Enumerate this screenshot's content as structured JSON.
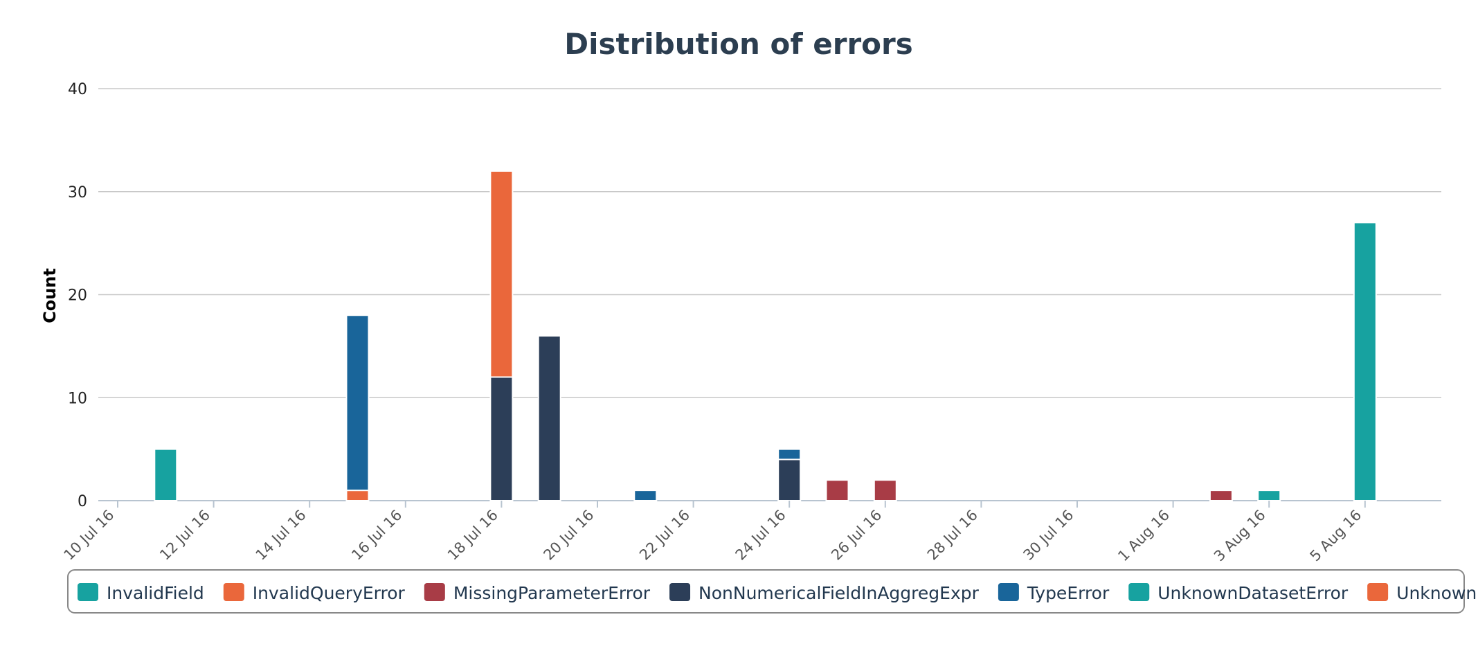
{
  "chart_data": {
    "type": "bar",
    "stacked": true,
    "title": "Distribution of errors",
    "ylabel": "Count",
    "xlabel": "",
    "ylim": [
      0,
      40
    ],
    "y_ticks": [
      "0",
      "10",
      "20",
      "30",
      "40"
    ],
    "x_axis": "date",
    "x_range": [
      "2016-07-10",
      "2016-08-07"
    ],
    "x_tick_dates": [
      "2016-07-10",
      "2016-07-12",
      "2016-07-14",
      "2016-07-16",
      "2016-07-18",
      "2016-07-20",
      "2016-07-22",
      "2016-07-24",
      "2016-07-26",
      "2016-07-28",
      "2016-07-30",
      "2016-08-01",
      "2016-08-03",
      "2016-08-05"
    ],
    "x_tick_labels": [
      "10 Jul 16",
      "12 Jul 16",
      "14 Jul 16",
      "16 Jul 16",
      "18 Jul 16",
      "20 Jul 16",
      "22 Jul 16",
      "24 Jul 16",
      "26 Jul 16",
      "28 Jul 16",
      "30 Jul 16",
      "1 Aug 16",
      "3 Aug 16",
      "5 Aug 16"
    ],
    "grid": true,
    "legend_position": "bottom",
    "series": [
      {
        "name": "InvalidField",
        "color": "#17a2a0",
        "points": [
          {
            "date": "2016-07-11",
            "value": 5
          }
        ]
      },
      {
        "name": "InvalidQueryError",
        "color": "#ea673b",
        "points": [
          {
            "date": "2016-07-15",
            "value": 1
          }
        ]
      },
      {
        "name": "MissingParameterError",
        "color": "#a83c46",
        "points": [
          {
            "date": "2016-07-25",
            "value": 2
          },
          {
            "date": "2016-07-26",
            "value": 2
          },
          {
            "date": "2016-08-02",
            "value": 1
          }
        ]
      },
      {
        "name": "NonNumericalFieldInAggregExpr",
        "color": "#2c3e58",
        "points": [
          {
            "date": "2016-07-18",
            "value": 12
          },
          {
            "date": "2016-07-19",
            "value": 16
          },
          {
            "date": "2016-07-24",
            "value": 4
          }
        ]
      },
      {
        "name": "TypeError",
        "color": "#19659a",
        "points": [
          {
            "date": "2016-07-15",
            "value": 17
          },
          {
            "date": "2016-07-21",
            "value": 1
          },
          {
            "date": "2016-07-24",
            "value": 1
          }
        ]
      },
      {
        "name": "UnknownDatasetError",
        "color": "#17a2a0",
        "points": [
          {
            "date": "2016-08-03",
            "value": 1
          },
          {
            "date": "2016-08-05",
            "value": 27
          }
        ]
      },
      {
        "name": "UnknownFacet",
        "color": "#ea673b",
        "points": [
          {
            "date": "2016-07-18",
            "value": 20
          }
        ]
      }
    ]
  }
}
